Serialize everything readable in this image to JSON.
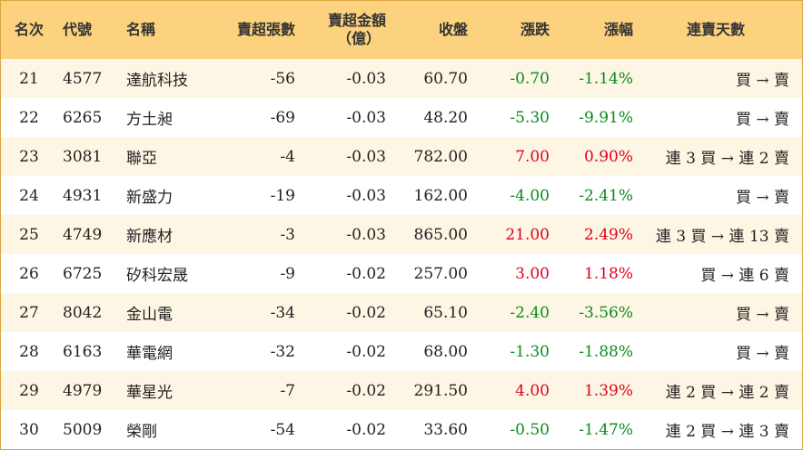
{
  "headers": {
    "rank": "名次",
    "code": "代號",
    "name": "名稱",
    "net_sell_lots": "賣超張數",
    "net_sell_amount_line1": "賣超金額",
    "net_sell_amount_line2": "（億）",
    "close": "收盤",
    "change": "漲跌",
    "change_pct": "漲幅",
    "streak": "連賣天數"
  },
  "colors": {
    "header_bg": "#fcd27e",
    "row_alt_bg": "#fef6e4",
    "up": "#e0001b",
    "down": "#0a8a1e"
  },
  "rows": [
    {
      "rank": "21",
      "code": "4577",
      "name": "達航科技",
      "lots": "-56",
      "amount": "-0.03",
      "close": "60.70",
      "change": "-0.70",
      "pct": "-1.14%",
      "streak": "買 → 賣",
      "trend": "down"
    },
    {
      "rank": "22",
      "code": "6265",
      "name": "方土昶",
      "lots": "-69",
      "amount": "-0.03",
      "close": "48.20",
      "change": "-5.30",
      "pct": "-9.91%",
      "streak": "買 → 賣",
      "trend": "down"
    },
    {
      "rank": "23",
      "code": "3081",
      "name": "聯亞",
      "lots": "-4",
      "amount": "-0.03",
      "close": "782.00",
      "change": "7.00",
      "pct": "0.90%",
      "streak": "連 3 買 → 連 2 賣",
      "trend": "up"
    },
    {
      "rank": "24",
      "code": "4931",
      "name": "新盛力",
      "lots": "-19",
      "amount": "-0.03",
      "close": "162.00",
      "change": "-4.00",
      "pct": "-2.41%",
      "streak": "買 → 賣",
      "trend": "down"
    },
    {
      "rank": "25",
      "code": "4749",
      "name": "新應材",
      "lots": "-3",
      "amount": "-0.03",
      "close": "865.00",
      "change": "21.00",
      "pct": "2.49%",
      "streak": "連 3 買 → 連 13 賣",
      "trend": "up"
    },
    {
      "rank": "26",
      "code": "6725",
      "name": "矽科宏晟",
      "lots": "-9",
      "amount": "-0.02",
      "close": "257.00",
      "change": "3.00",
      "pct": "1.18%",
      "streak": "買 → 連 6 賣",
      "trend": "up"
    },
    {
      "rank": "27",
      "code": "8042",
      "name": "金山電",
      "lots": "-34",
      "amount": "-0.02",
      "close": "65.10",
      "change": "-2.40",
      "pct": "-3.56%",
      "streak": "買 → 賣",
      "trend": "down"
    },
    {
      "rank": "28",
      "code": "6163",
      "name": "華電網",
      "lots": "-32",
      "amount": "-0.02",
      "close": "68.00",
      "change": "-1.30",
      "pct": "-1.88%",
      "streak": "買 → 賣",
      "trend": "down"
    },
    {
      "rank": "29",
      "code": "4979",
      "name": "華星光",
      "lots": "-7",
      "amount": "-0.02",
      "close": "291.50",
      "change": "4.00",
      "pct": "1.39%",
      "streak": "連 2 買 → 連 2 賣",
      "trend": "up"
    },
    {
      "rank": "30",
      "code": "5009",
      "name": "榮剛",
      "lots": "-54",
      "amount": "-0.02",
      "close": "33.60",
      "change": "-0.50",
      "pct": "-1.47%",
      "streak": "連 2 買 → 連 3 賣",
      "trend": "down"
    }
  ]
}
